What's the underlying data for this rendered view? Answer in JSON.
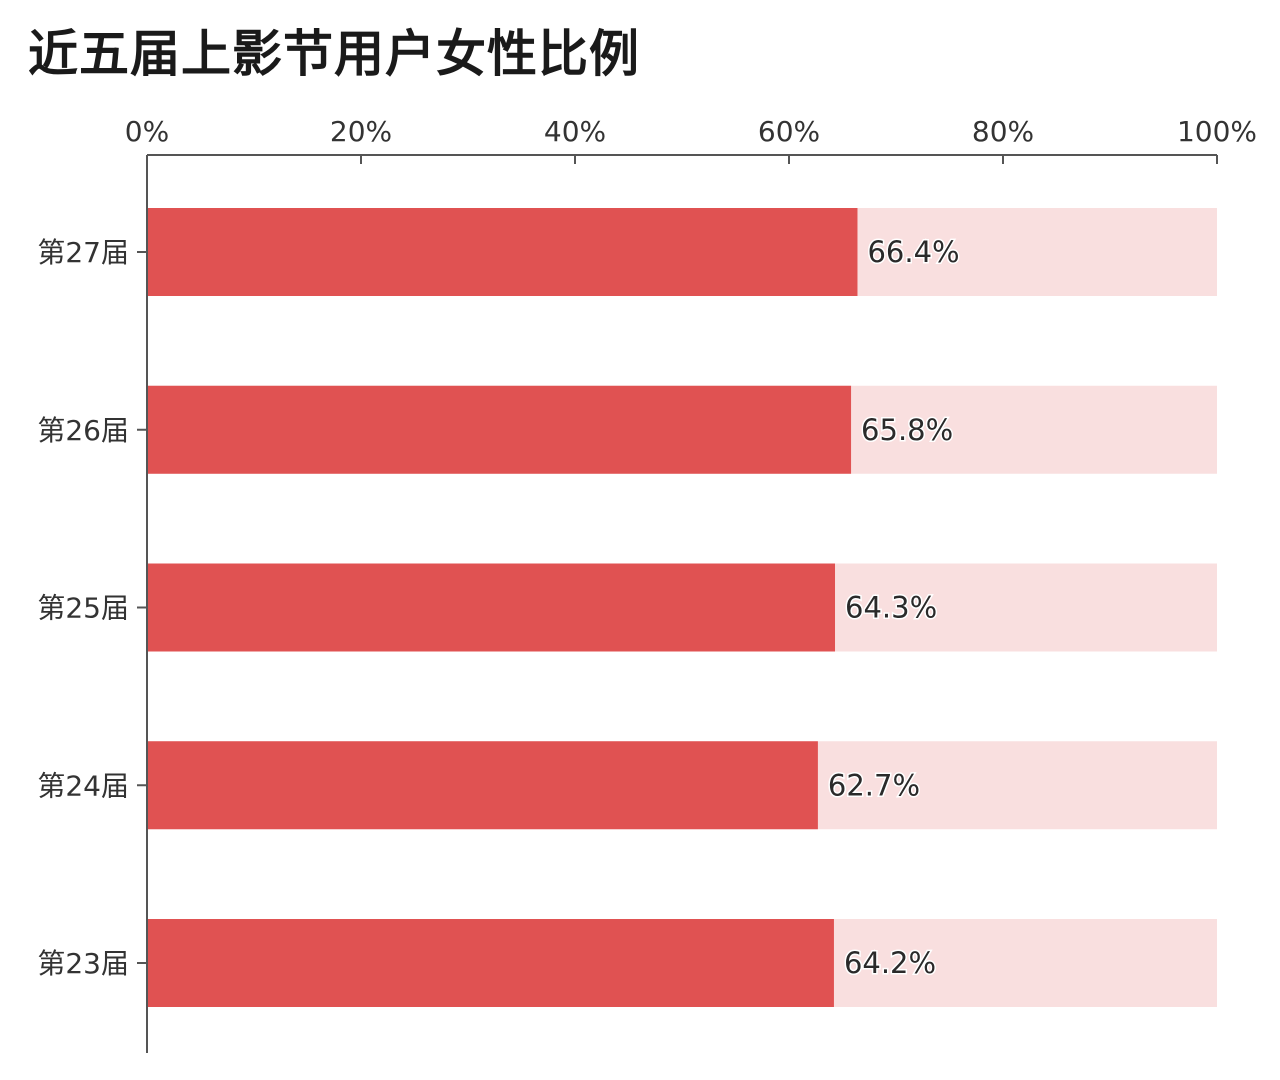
{
  "chart_data": {
    "type": "bar",
    "orientation": "horizontal",
    "stacked_with_remainder": true,
    "title": "近五届上影节用户女性比例",
    "categories": [
      "第27届",
      "第26届",
      "第25届",
      "第24届",
      "第23届"
    ],
    "series": [
      {
        "values": [
          66.4,
          65.8,
          64.3,
          62.7,
          64.2
        ]
      }
    ],
    "data_labels": [
      "66.4%",
      "65.8%",
      "64.3%",
      "62.7%",
      "64.2%"
    ],
    "x_ticks": [
      "0%",
      "20%",
      "40%",
      "60%",
      "80%",
      "100%"
    ],
    "xlim": [
      0,
      100
    ],
    "x_axis_position": "top",
    "grid": false,
    "legend": "none",
    "colors": {
      "bar": "#e05252",
      "remainder": "#f9dfdf",
      "axis": "#555555"
    }
  }
}
